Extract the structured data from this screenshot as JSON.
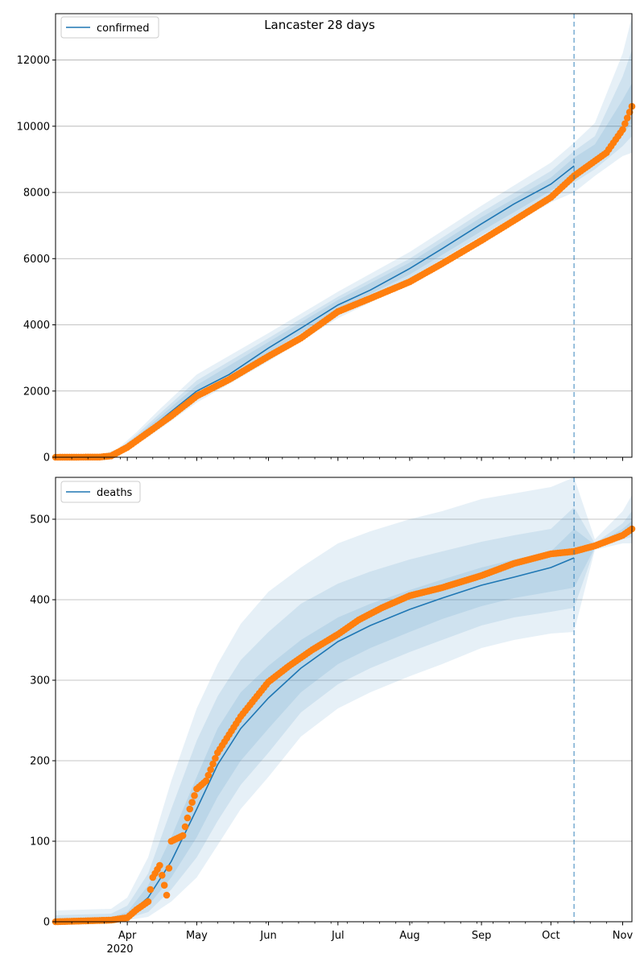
{
  "figure_title": "Lancaster 28 days",
  "colors": {
    "model_line": "#1f77b4",
    "observed_points": "#ff7f0e",
    "band": "#1f77b4",
    "grid": "#b0b0b0",
    "vline": "#1f77b4"
  },
  "x_axis": {
    "domain": [
      "2020-03-01",
      "2020-11-05"
    ],
    "ticks": [
      {
        "date": "2020-04-01",
        "label": "Apr"
      },
      {
        "date": "2020-05-01",
        "label": "May"
      },
      {
        "date": "2020-06-01",
        "label": "Jun"
      },
      {
        "date": "2020-07-01",
        "label": "Jul"
      },
      {
        "date": "2020-08-01",
        "label": "Aug"
      },
      {
        "date": "2020-09-01",
        "label": "Sep"
      },
      {
        "date": "2020-10-01",
        "label": "Oct"
      },
      {
        "date": "2020-11-01",
        "label": "Nov"
      }
    ],
    "year_label": "2020",
    "forecast_start": "2020-10-11"
  },
  "chart_data": [
    {
      "type": "line",
      "legend": "confirmed",
      "legend_position": "top-left",
      "grid": "y",
      "ylim": [
        0,
        13400
      ],
      "yticks": [
        0,
        2000,
        4000,
        6000,
        8000,
        10000,
        12000
      ],
      "model": {
        "dates": [
          "2020-03-01",
          "2020-03-20",
          "2020-03-28",
          "2020-04-05",
          "2020-04-15",
          "2020-05-01",
          "2020-05-15",
          "2020-06-01",
          "2020-06-15",
          "2020-07-01",
          "2020-07-15",
          "2020-08-01",
          "2020-08-15",
          "2020-09-01",
          "2020-09-15",
          "2020-10-01",
          "2020-10-11"
        ],
        "values": [
          0,
          20,
          150,
          550,
          1100,
          2000,
          2500,
          3300,
          3900,
          4600,
          5050,
          5700,
          6300,
          7050,
          7650,
          8250,
          8800
        ]
      },
      "bands": [
        {
          "dates": [
            "2020-03-01",
            "2020-03-20",
            "2020-03-28",
            "2020-04-05",
            "2020-04-15",
            "2020-05-01",
            "2020-06-01",
            "2020-07-01",
            "2020-08-01",
            "2020-09-01",
            "2020-10-01",
            "2020-10-11",
            "2020-10-20",
            "2020-11-01",
            "2020-11-05"
          ],
          "lower": [
            0,
            0,
            60,
            380,
            850,
            1650,
            2900,
            4200,
            5250,
            6500,
            7700,
            8000,
            8500,
            9100,
            9200
          ],
          "upper": [
            30,
            50,
            260,
            760,
            1450,
            2500,
            3750,
            5000,
            6200,
            7600,
            8900,
            9500,
            10100,
            12200,
            13300
          ]
        },
        {
          "dates": [
            "2020-03-01",
            "2020-03-20",
            "2020-03-28",
            "2020-04-05",
            "2020-04-15",
            "2020-05-01",
            "2020-06-01",
            "2020-07-01",
            "2020-08-01",
            "2020-09-01",
            "2020-10-01",
            "2020-10-11",
            "2020-10-20",
            "2020-11-01",
            "2020-11-05"
          ],
          "lower": [
            0,
            5,
            90,
            440,
            940,
            1780,
            3050,
            4350,
            5400,
            6700,
            7900,
            8300,
            8700,
            9400,
            9700
          ],
          "upper": [
            20,
            40,
            220,
            680,
            1320,
            2320,
            3600,
            4850,
            6000,
            7400,
            8650,
            9250,
            9700,
            11500,
            12300
          ]
        },
        {
          "dates": [
            "2020-03-01",
            "2020-03-20",
            "2020-03-28",
            "2020-04-05",
            "2020-04-15",
            "2020-05-01",
            "2020-06-01",
            "2020-07-01",
            "2020-08-01",
            "2020-09-01",
            "2020-10-01",
            "2020-10-11",
            "2020-10-20",
            "2020-11-01",
            "2020-11-05"
          ],
          "lower": [
            0,
            10,
            120,
            490,
            1020,
            1880,
            3150,
            4450,
            5520,
            6830,
            8050,
            8500,
            8900,
            9750,
            10100
          ],
          "upper": [
            10,
            30,
            180,
            620,
            1220,
            2180,
            3480,
            4750,
            5880,
            7250,
            8450,
            9050,
            9450,
            10800,
            11300
          ]
        }
      ],
      "observed": {
        "dates": [
          "2020-03-01",
          "2020-03-20",
          "2020-03-25",
          "2020-04-01",
          "2020-04-10",
          "2020-04-20",
          "2020-05-01",
          "2020-05-15",
          "2020-06-01",
          "2020-06-15",
          "2020-07-01",
          "2020-07-15",
          "2020-08-01",
          "2020-08-15",
          "2020-09-01",
          "2020-09-15",
          "2020-10-01",
          "2020-10-11",
          "2020-10-20",
          "2020-10-25",
          "2020-11-01",
          "2020-11-05"
        ],
        "values": [
          0,
          5,
          40,
          300,
          750,
          1250,
          1850,
          2350,
          3050,
          3600,
          4400,
          4800,
          5300,
          5850,
          6550,
          7150,
          7850,
          8500,
          8950,
          9200,
          9900,
          10600
        ]
      }
    },
    {
      "type": "line",
      "legend": "deaths",
      "legend_position": "top-left",
      "grid": "y",
      "ylim": [
        0,
        552
      ],
      "yticks": [
        0,
        100,
        200,
        300,
        400,
        500
      ],
      "model": {
        "dates": [
          "2020-03-01",
          "2020-03-25",
          "2020-04-01",
          "2020-04-10",
          "2020-04-20",
          "2020-05-01",
          "2020-05-10",
          "2020-05-20",
          "2020-06-01",
          "2020-06-15",
          "2020-07-01",
          "2020-07-15",
          "2020-08-01",
          "2020-08-15",
          "2020-09-01",
          "2020-09-15",
          "2020-10-01",
          "2020-10-11"
        ],
        "values": [
          0,
          2,
          8,
          30,
          75,
          140,
          195,
          240,
          278,
          315,
          348,
          368,
          388,
          402,
          418,
          428,
          440,
          452
        ]
      },
      "bands": [
        {
          "dates": [
            "2020-03-01",
            "2020-03-25",
            "2020-04-01",
            "2020-04-10",
            "2020-04-20",
            "2020-05-01",
            "2020-05-10",
            "2020-05-20",
            "2020-06-01",
            "2020-06-15",
            "2020-07-01",
            "2020-07-15",
            "2020-08-01",
            "2020-08-15",
            "2020-09-01",
            "2020-09-15",
            "2020-10-01",
            "2020-10-11",
            "2020-10-20",
            "2020-11-01",
            "2020-11-05"
          ],
          "lower": [
            0,
            0,
            2,
            6,
            25,
            55,
            95,
            140,
            180,
            230,
            265,
            285,
            305,
            320,
            340,
            350,
            358,
            360,
            462,
            470,
            470
          ],
          "upper": [
            14,
            16,
            30,
            80,
            175,
            265,
            320,
            370,
            410,
            440,
            470,
            485,
            500,
            510,
            525,
            532,
            540,
            552,
            475,
            510,
            530
          ]
        },
        {
          "dates": [
            "2020-03-01",
            "2020-03-25",
            "2020-04-01",
            "2020-04-10",
            "2020-04-20",
            "2020-05-01",
            "2020-05-10",
            "2020-05-20",
            "2020-06-01",
            "2020-06-15",
            "2020-07-01",
            "2020-07-15",
            "2020-08-01",
            "2020-08-15",
            "2020-09-01",
            "2020-09-15",
            "2020-10-01",
            "2020-10-11",
            "2020-10-20",
            "2020-11-01",
            "2020-11-05"
          ],
          "lower": [
            0,
            0,
            4,
            12,
            40,
            80,
            125,
            170,
            210,
            260,
            295,
            315,
            335,
            350,
            368,
            378,
            385,
            390,
            464,
            475,
            478
          ],
          "upper": [
            8,
            10,
            20,
            60,
            140,
            225,
            280,
            325,
            360,
            395,
            420,
            435,
            450,
            460,
            472,
            480,
            488,
            515,
            470,
            495,
            510
          ]
        },
        {
          "dates": [
            "2020-03-01",
            "2020-03-25",
            "2020-04-01",
            "2020-04-10",
            "2020-04-20",
            "2020-05-01",
            "2020-05-10",
            "2020-05-20",
            "2020-06-01",
            "2020-06-15",
            "2020-07-01",
            "2020-07-15",
            "2020-08-01",
            "2020-08-15",
            "2020-09-01",
            "2020-09-15",
            "2020-10-01",
            "2020-10-11",
            "2020-10-20",
            "2020-11-01",
            "2020-11-05"
          ],
          "lower": [
            0,
            0,
            6,
            20,
            55,
            105,
            155,
            200,
            240,
            285,
            320,
            340,
            360,
            376,
            392,
            402,
            410,
            415,
            465,
            478,
            482
          ],
          "upper": [
            4,
            6,
            12,
            45,
            105,
            180,
            240,
            285,
            318,
            350,
            378,
            395,
            412,
            425,
            440,
            450,
            460,
            488,
            468,
            488,
            498
          ]
        }
      ],
      "observed": {
        "dates": [
          "2020-03-01",
          "2020-03-25",
          "2020-04-01",
          "2020-04-05",
          "2020-04-10",
          "2020-04-12",
          "2020-04-15",
          "2020-04-18",
          "2020-04-20",
          "2020-04-25",
          "2020-04-28",
          "2020-05-01",
          "2020-05-05",
          "2020-05-10",
          "2020-05-20",
          "2020-06-01",
          "2020-06-10",
          "2020-06-20",
          "2020-07-01",
          "2020-07-10",
          "2020-07-20",
          "2020-08-01",
          "2020-08-15",
          "2020-09-01",
          "2020-09-15",
          "2020-10-01",
          "2020-10-11",
          "2020-10-20",
          "2020-11-01",
          "2020-11-05"
        ],
        "values": [
          0,
          2,
          5,
          15,
          25,
          55,
          70,
          33,
          100,
          107,
          140,
          165,
          175,
          210,
          255,
          298,
          318,
          338,
          357,
          375,
          390,
          405,
          415,
          430,
          445,
          457,
          460,
          467,
          480,
          488
        ]
      }
    }
  ]
}
